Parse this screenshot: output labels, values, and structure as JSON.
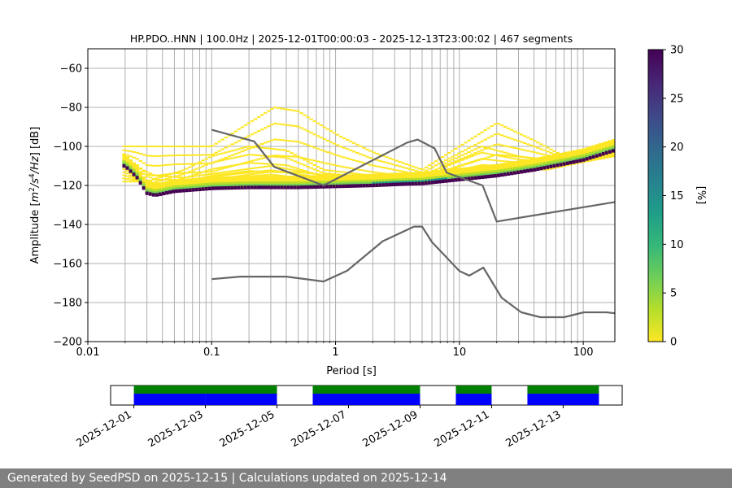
{
  "chart_data": [
    {
      "type": "heatmap",
      "title": "HP.PDO..HNN | 100.0Hz | 2025-12-01T00:00:03 - 2025-12-13T23:00:02 | 467 segments",
      "xlabel": "Period [s]",
      "ylabel_parts": {
        "prefix": "Amplitude [",
        "m": "m",
        "exp2": "2",
        "slash": "/s",
        "exp4": "4",
        "hz": "/Hz",
        "suffix": "] [dB]"
      },
      "x_scale": "log",
      "xlim": [
        0.01,
        180
      ],
      "ylim": [
        -200,
        -50
      ],
      "grid": true,
      "x_ticks": [
        {
          "v": 0.01,
          "label": "0.01"
        },
        {
          "v": 0.1,
          "label": "0.1"
        },
        {
          "v": 1,
          "label": "1"
        },
        {
          "v": 10,
          "label": "10"
        },
        {
          "v": 100,
          "label": "100"
        }
      ],
      "x_minor_grid": [
        0.02,
        0.03,
        0.04,
        0.05,
        0.06,
        0.07,
        0.08,
        0.09,
        0.2,
        0.3,
        0.4,
        0.5,
        0.6,
        0.7,
        0.8,
        0.9,
        2,
        3,
        4,
        5,
        6,
        7,
        8,
        9,
        20,
        30,
        40,
        50,
        60,
        70,
        80,
        90
      ],
      "y_ticks": [
        {
          "v": -60,
          "label": "−60"
        },
        {
          "v": -80,
          "label": "−80"
        },
        {
          "v": -100,
          "label": "−100"
        },
        {
          "v": -120,
          "label": "−120"
        },
        {
          "v": -140,
          "label": "−140"
        },
        {
          "v": -160,
          "label": "−160"
        },
        {
          "v": -180,
          "label": "−180"
        },
        {
          "v": -200,
          "label": "−200"
        }
      ],
      "colorbar": {
        "label": "[%]",
        "min": 0,
        "max": 30,
        "ticks": [
          {
            "v": 0,
            "label": "0"
          },
          {
            "v": 5,
            "label": "5"
          },
          {
            "v": 10,
            "label": "10"
          },
          {
            "v": 15,
            "label": "15"
          },
          {
            "v": 20,
            "label": "20"
          },
          {
            "v": 25,
            "label": "25"
          },
          {
            "v": 30,
            "label": "30"
          }
        ],
        "colormap": [
          "#fde725",
          "#b5de2b",
          "#6ece58",
          "#35b779",
          "#1f9e89",
          "#26828e",
          "#31688e",
          "#3e4989",
          "#482878",
          "#440154"
        ]
      },
      "mode_curve": [
        [
          0.02,
          -110
        ],
        [
          0.025,
          -116
        ],
        [
          0.03,
          -124
        ],
        [
          0.035,
          -125
        ],
        [
          0.05,
          -123
        ],
        [
          0.08,
          -122
        ],
        [
          0.1,
          -121.5
        ],
        [
          0.2,
          -121
        ],
        [
          0.5,
          -121
        ],
        [
          1,
          -120.5
        ],
        [
          2,
          -120
        ],
        [
          3,
          -119.5
        ],
        [
          5,
          -119
        ],
        [
          10,
          -117
        ],
        [
          20,
          -115
        ],
        [
          40,
          -112
        ],
        [
          70,
          -109
        ],
        [
          100,
          -107
        ],
        [
          180,
          -102
        ]
      ],
      "spread_bands": [
        {
          "x": [
            0.1,
            0.2,
            0.32,
            0.5,
            0.8,
            1.1,
            2,
            5,
            10,
            20,
            40,
            80,
            180
          ],
          "y": [
            -100,
            -88,
            -80,
            -82,
            -90,
            -95,
            -103,
            -112,
            -100,
            -88,
            -97,
            -107,
            -103
          ]
        },
        {
          "x": [
            0.03,
            0.06,
            0.1,
            0.2,
            0.4,
            0.8,
            2,
            5,
            8,
            15,
            30,
            60,
            180
          ],
          "y": [
            -118,
            -112,
            -105,
            -100,
            -102,
            -112,
            -115,
            -118,
            -108,
            -100,
            -105,
            -108,
            -98
          ]
        },
        {
          "x": [
            0.02,
            0.035,
            0.06,
            0.1,
            0.3,
            1,
            3,
            6,
            10,
            20,
            50,
            100,
            180
          ],
          "y": [
            -108,
            -115,
            -116,
            -114,
            -110,
            -116,
            -114,
            -116,
            -114,
            -110,
            -112,
            -108,
            -105
          ]
        }
      ],
      "noise_models": [
        {
          "x": [
            0.1,
            0.22,
            0.32,
            0.8,
            3.8,
            4.6,
            6.3,
            7.9,
            15.4,
            20,
            180
          ],
          "y": [
            -91.5,
            -97.4,
            -110.5,
            -120,
            -98,
            -96.5,
            -101,
            -113.5,
            -120,
            -138.5,
            -128.5
          ]
        },
        {
          "x": [
            0.1,
            0.17,
            0.4,
            0.8,
            1.24,
            2.4,
            4.3,
            5,
            6,
            10,
            12,
            15.6,
            21.9,
            31.6,
            45,
            70,
            101,
            154,
            180
          ],
          "y": [
            -168,
            -166.7,
            -166.7,
            -169.2,
            -163.7,
            -148.6,
            -141.1,
            -141.1,
            -149,
            -163.8,
            -166.2,
            -162.1,
            -177.5,
            -185,
            -187.5,
            -187.5,
            -185,
            -185,
            -185.5
          ]
        }
      ]
    },
    {
      "type": "timeline",
      "x_ticks": [
        {
          "v": 0,
          "label": "2025-12-01"
        },
        {
          "v": 2,
          "label": "2025-12-03"
        },
        {
          "v": 4,
          "label": "2025-12-05"
        },
        {
          "v": 6,
          "label": "2025-12-07"
        },
        {
          "v": 8,
          "label": "2025-12-09"
        },
        {
          "v": 10,
          "label": "2025-12-11"
        },
        {
          "v": 12,
          "label": "2025-12-13"
        }
      ],
      "xlim": [
        -0.65,
        13.65
      ],
      "data_available": [
        [
          0,
          4
        ],
        [
          5,
          8
        ],
        [
          9,
          10
        ],
        [
          11,
          13
        ]
      ],
      "psd_processed": [
        [
          0,
          2
        ],
        [
          2,
          4
        ],
        [
          5,
          6
        ],
        [
          6,
          7
        ],
        [
          7,
          8
        ],
        [
          9,
          10
        ],
        [
          11,
          13
        ]
      ],
      "colors": {
        "available": "#008000",
        "processed": "#0000ff"
      }
    }
  ],
  "footer": {
    "text": "Generated by SeedPSD on 2025-12-15 | Calculations updated on 2025-12-14"
  }
}
